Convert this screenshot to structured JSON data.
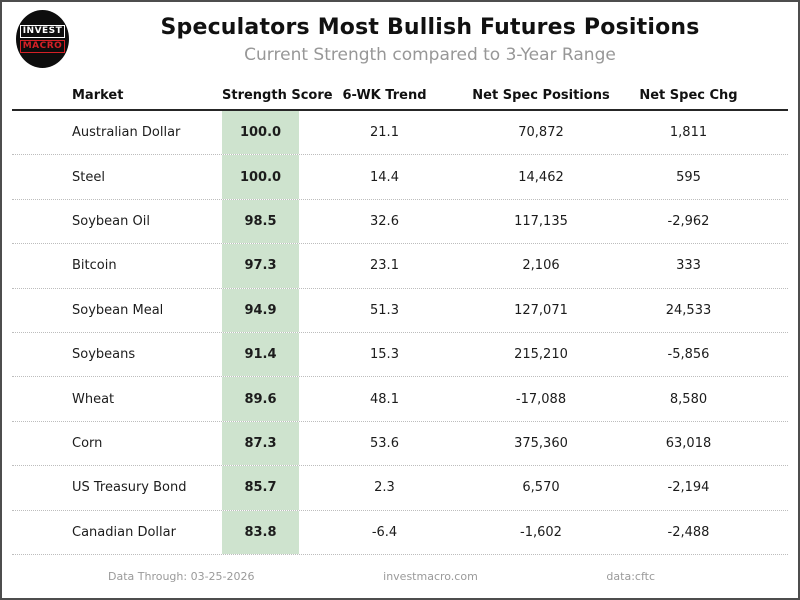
{
  "header": {
    "title": "Speculators Most Bullish Futures Positions",
    "subtitle": "Current Strength compared to 3-Year Range",
    "logo": {
      "line1": "INVEST",
      "line2": "MACRO"
    }
  },
  "table": {
    "columns": [
      "Market",
      "Strength Score",
      "6-WK Trend",
      "Net Spec Positions",
      "Net Spec Chg"
    ],
    "rows": [
      {
        "market": "Australian Dollar",
        "score": "100.0",
        "trend": "21.1",
        "positions": "70,872",
        "change": "1,811"
      },
      {
        "market": "Steel",
        "score": "100.0",
        "trend": "14.4",
        "positions": "14,462",
        "change": "595"
      },
      {
        "market": "Soybean Oil",
        "score": "98.5",
        "trend": "32.6",
        "positions": "117,135",
        "change": "-2,962"
      },
      {
        "market": "Bitcoin",
        "score": "97.3",
        "trend": "23.1",
        "positions": "2,106",
        "change": "333"
      },
      {
        "market": "Soybean Meal",
        "score": "94.9",
        "trend": "51.3",
        "positions": "127,071",
        "change": "24,533"
      },
      {
        "market": "Soybeans",
        "score": "91.4",
        "trend": "15.3",
        "positions": "215,210",
        "change": "-5,856"
      },
      {
        "market": "Wheat",
        "score": "89.6",
        "trend": "48.1",
        "positions": "-17,088",
        "change": "8,580"
      },
      {
        "market": "Corn",
        "score": "87.3",
        "trend": "53.6",
        "positions": "375,360",
        "change": "63,018"
      },
      {
        "market": "US Treasury Bond",
        "score": "85.7",
        "trend": "2.3",
        "positions": "6,570",
        "change": "-2,194"
      },
      {
        "market": "Canadian Dollar",
        "score": "83.8",
        "trend": "-6.4",
        "positions": "-1,602",
        "change": "-2,488"
      }
    ]
  },
  "footer": {
    "data_through": "Data Through: 03-25-2026",
    "website": "investmacro.com",
    "source": "data:cftc"
  },
  "colors": {
    "score_highlight": "#cee3ce",
    "logo_red": "#d42026",
    "subtitle_gray": "#979797"
  },
  "chart_data": {
    "type": "table",
    "title": "Speculators Most Bullish Futures Positions",
    "subtitle": "Current Strength compared to 3-Year Range",
    "columns": [
      "Market",
      "Strength Score",
      "6-WK Trend",
      "Net Spec Positions",
      "Net Spec Chg"
    ],
    "rows": [
      [
        "Australian Dollar",
        100.0,
        21.1,
        70872,
        1811
      ],
      [
        "Steel",
        100.0,
        14.4,
        14462,
        595
      ],
      [
        "Soybean Oil",
        98.5,
        32.6,
        117135,
        -2962
      ],
      [
        "Bitcoin",
        97.3,
        23.1,
        2106,
        333
      ],
      [
        "Soybean Meal",
        94.9,
        51.3,
        127071,
        24533
      ],
      [
        "Soybeans",
        91.4,
        15.3,
        215210,
        -5856
      ],
      [
        "Wheat",
        89.6,
        48.1,
        -17088,
        8580
      ],
      [
        "Corn",
        87.3,
        53.6,
        375360,
        63018
      ],
      [
        "US Treasury Bond",
        85.7,
        2.3,
        6570,
        -2194
      ],
      [
        "Canadian Dollar",
        83.8,
        -6.4,
        -1602,
        -2488
      ]
    ],
    "notes": "Strength Score column highlighted in light green; data through 03-25-2026; source CFTC"
  }
}
